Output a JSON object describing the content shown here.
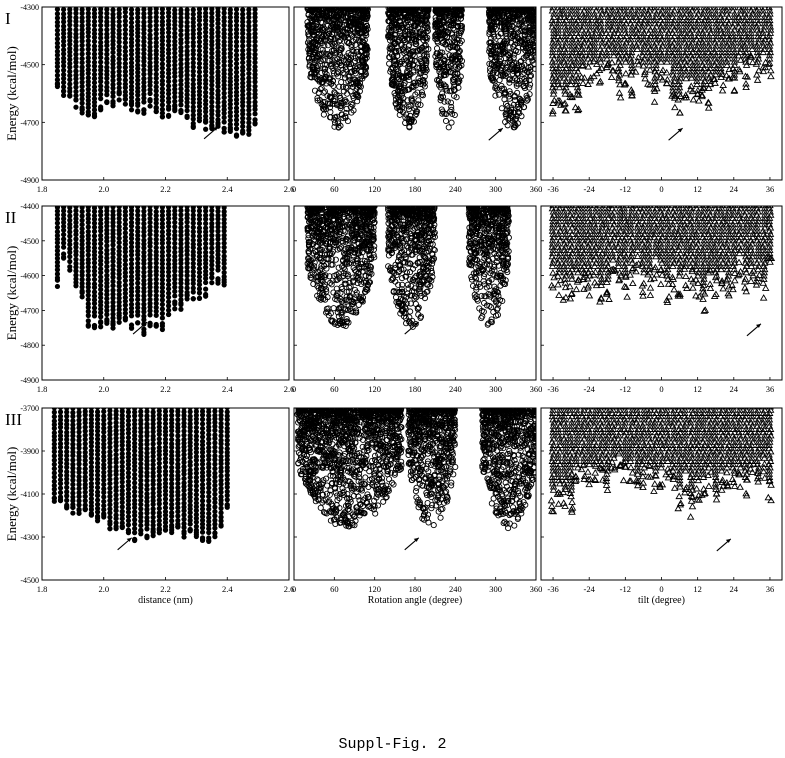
{
  "caption": "Suppl-Fig. 2",
  "rows": [
    {
      "label": "I",
      "ylabel": "Energy (kcal/mol)",
      "yticks": [
        "-4300",
        "-4500",
        "-4700",
        "-4900"
      ]
    },
    {
      "label": "II",
      "ylabel": "Energy (kcal/mol)",
      "yticks": [
        "-4400",
        "-4500",
        "-4600",
        "-4700",
        "-4800",
        "-4900"
      ]
    },
    {
      "label": "III",
      "ylabel": "Energy (kcal/mol)",
      "yticks": [
        "-3700",
        "-3900",
        "-4100",
        "-4300",
        "-4500"
      ]
    }
  ],
  "columns": [
    {
      "xlabel": "distance (nm)",
      "xticks": [
        "1.8",
        "2.0",
        "2.2",
        "2.4",
        "2.6"
      ],
      "marker": "filled-circle"
    },
    {
      "xlabel": "Rotation angle (degree)",
      "xticks": [
        "0",
        "60",
        "120",
        "180",
        "240",
        "300",
        "360"
      ],
      "marker": "open-circle"
    },
    {
      "xlabel": "tilt (degree)",
      "xticks": [
        "-36",
        "-24",
        "-12",
        "0",
        "12",
        "24",
        "36"
      ],
      "marker": "open-triangle"
    }
  ],
  "chart_data": [
    {
      "type": "scatter",
      "panel": "I-distance",
      "marker": "filled-circle",
      "xlim": [
        1.8,
        2.6
      ],
      "ylim": [
        -4900,
        -4300
      ],
      "x_range_data": [
        1.85,
        2.5
      ],
      "y_min_per_x": [
        [
          1.85,
          -4560
        ],
        [
          1.95,
          -4660
        ],
        [
          2.05,
          -4600
        ],
        [
          2.2,
          -4650
        ],
        [
          2.38,
          -4710
        ],
        [
          2.45,
          -4720
        ],
        [
          2.5,
          -4660
        ]
      ],
      "annotation": {
        "type": "arrow",
        "target": [
          2.38,
          -4705
        ]
      }
    },
    {
      "type": "scatter",
      "panel": "I-rotation",
      "marker": "open-circle",
      "xlim": [
        0,
        360
      ],
      "ylim": [
        -4900,
        -4300
      ],
      "clusters": [
        [
          20,
          110
        ],
        [
          140,
          200
        ],
        [
          210,
          250
        ],
        [
          290,
          360
        ]
      ],
      "annotation": {
        "type": "arrow",
        "target": [
          315,
          -4710
        ]
      }
    },
    {
      "type": "scatter",
      "panel": "I-tilt",
      "marker": "open-triangle",
      "xlim": [
        -40,
        40
      ],
      "ylim": [
        -4900,
        -4300
      ],
      "x_range_data": [
        -36,
        36
      ],
      "annotation": {
        "type": "arrow",
        "target": [
          8,
          -4710
        ]
      }
    },
    {
      "type": "scatter",
      "panel": "II-distance",
      "marker": "filled-circle",
      "xlim": [
        1.8,
        2.6
      ],
      "ylim": [
        -4900,
        -4400
      ],
      "x_range_data": [
        1.85,
        2.4
      ],
      "y_min_per_x": [
        [
          1.87,
          -4520
        ],
        [
          1.95,
          -4710
        ],
        [
          2.0,
          -4720
        ],
        [
          2.15,
          -4730
        ],
        [
          2.4,
          -4590
        ]
      ],
      "annotation": {
        "type": "arrow",
        "target": [
          2.15,
          -4725
        ]
      }
    },
    {
      "type": "scatter",
      "panel": "II-rotation",
      "marker": "open-circle",
      "xlim": [
        0,
        360
      ],
      "ylim": [
        -4900,
        -4400
      ],
      "clusters": [
        [
          20,
          120
        ],
        [
          140,
          210
        ],
        [
          260,
          320
        ]
      ],
      "annotation": {
        "type": "arrow",
        "target": [
          190,
          -4725
        ]
      }
    },
    {
      "type": "scatter",
      "panel": "II-tilt",
      "marker": "open-triangle",
      "xlim": [
        -40,
        40
      ],
      "ylim": [
        -4900,
        -4400
      ],
      "x_range_data": [
        -36,
        36
      ],
      "annotation": {
        "type": "arrow",
        "target": [
          34,
          -4730
        ]
      }
    },
    {
      "type": "scatter",
      "panel": "III-distance",
      "marker": "filled-circle",
      "xlim": [
        1.8,
        2.6
      ],
      "ylim": [
        -4500,
        -3700
      ],
      "x_range_data": [
        1.84,
        2.4
      ],
      "y_min_per_x": [
        [
          1.84,
          -4130
        ],
        [
          2.0,
          -4200
        ],
        [
          2.1,
          -4290
        ],
        [
          2.2,
          -4250
        ],
        [
          2.35,
          -4290
        ],
        [
          2.4,
          -4150
        ]
      ],
      "annotation": {
        "type": "arrow",
        "target": [
          2.1,
          -4290
        ]
      }
    },
    {
      "type": "scatter",
      "panel": "III-rotation",
      "marker": "open-circle",
      "xlim": [
        0,
        360
      ],
      "ylim": [
        -4500,
        -3700
      ],
      "clusters": [
        [
          5,
          160
        ],
        [
          170,
          240
        ],
        [
          280,
          360
        ]
      ],
      "annotation": {
        "type": "arrow",
        "target": [
          190,
          -4290
        ]
      }
    },
    {
      "type": "scatter",
      "panel": "III-tilt",
      "marker": "open-triangle",
      "xlim": [
        -40,
        40
      ],
      "ylim": [
        -4500,
        -3700
      ],
      "x_range_data": [
        -36,
        36
      ],
      "annotation": {
        "type": "arrow",
        "target": [
          24,
          -4295
        ]
      }
    }
  ]
}
